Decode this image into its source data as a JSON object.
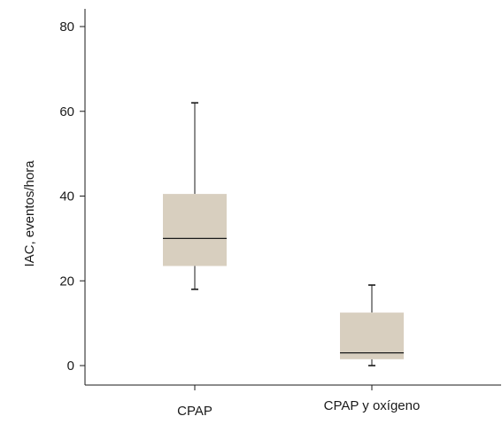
{
  "chart_data": {
    "type": "box",
    "title": "",
    "xlabel": "",
    "ylabel": "IAC, eventos/hora",
    "ylim": [
      -4,
      84
    ],
    "yticks": [
      0,
      20,
      40,
      60,
      80
    ],
    "grid": false,
    "box_color": "#d8cfbf",
    "line_color": "#1a1a1a",
    "categories": [
      "CPAP",
      "CPAP y oxígeno"
    ],
    "boxes": [
      {
        "category": "CPAP",
        "whisker_low": 18,
        "q1": 23.5,
        "median": 30,
        "q3": 40.5,
        "whisker_high": 62
      },
      {
        "category": "CPAP y oxígeno",
        "whisker_low": 0,
        "q1": 1.5,
        "median": 3,
        "q3": 12.5,
        "whisker_high": 19
      }
    ]
  }
}
